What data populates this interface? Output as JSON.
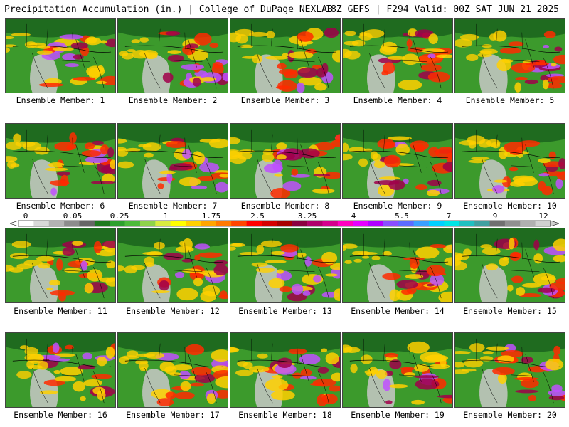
{
  "header": {
    "title": "Precipitation Accumulation (in.) | College of DuPage NEXLAB",
    "run_info": "18Z GEFS | F294 Valid: 00Z SAT JUN 21 2025"
  },
  "panels": [
    {
      "label": "Ensemble Member: 1"
    },
    {
      "label": "Ensemble Member: 2"
    },
    {
      "label": "Ensemble Member: 3"
    },
    {
      "label": "Ensemble Member: 4"
    },
    {
      "label": "Ensemble Member: 5"
    },
    {
      "label": "Ensemble Member: 6"
    },
    {
      "label": "Ensemble Member: 7"
    },
    {
      "label": "Ensemble Member: 8"
    },
    {
      "label": "Ensemble Member: 9"
    },
    {
      "label": "Ensemble Member: 10"
    },
    {
      "label": "Ensemble Member: 11"
    },
    {
      "label": "Ensemble Member: 12"
    },
    {
      "label": "Ensemble Member: 13"
    },
    {
      "label": "Ensemble Member: 14"
    },
    {
      "label": "Ensemble Member: 15"
    },
    {
      "label": "Ensemble Member: 16"
    },
    {
      "label": "Ensemble Member: 17"
    },
    {
      "label": "Ensemble Member: 18"
    },
    {
      "label": "Ensemble Member: 19"
    },
    {
      "label": "Ensemble Member: 20"
    }
  ],
  "colorbar": {
    "tick_labels": [
      "0",
      "0.05",
      "0.25",
      "1",
      "1.75",
      "2.5",
      "3.25",
      "4",
      "5.5",
      "7",
      "9",
      "12"
    ],
    "colors": [
      "#ffffff",
      "#d9d9d9",
      "#b3b3b3",
      "#8c8c8c",
      "#666666",
      "#1e7a1e",
      "#2ea02e",
      "#4cbb3a",
      "#8ed34a",
      "#d8ec40",
      "#ffff00",
      "#ffd000",
      "#ffa500",
      "#ff7a00",
      "#ff4500",
      "#ff0000",
      "#d40000",
      "#a80000",
      "#8b0040",
      "#b0006a",
      "#d4008c",
      "#ff00c0",
      "#e600ff",
      "#b000ff",
      "#8a4dff",
      "#5c6cff",
      "#3aa0ff",
      "#00d0ff",
      "#00e6e6",
      "#20c0c0",
      "#40a0a0",
      "#707070",
      "#909090",
      "#b0b0b0",
      "#d0d0d0"
    ]
  },
  "map_colors": {
    "land_dry": "#3c9a2c",
    "land_dark": "#1f6b1f",
    "ocean_low": "#2e8a2e",
    "arid": "#c8c8c8",
    "moderate": "#ffd000",
    "heavy": "#ff2a00",
    "very_heavy": "#a0004a",
    "extreme": "#c050ff",
    "borders": "#000000"
  }
}
